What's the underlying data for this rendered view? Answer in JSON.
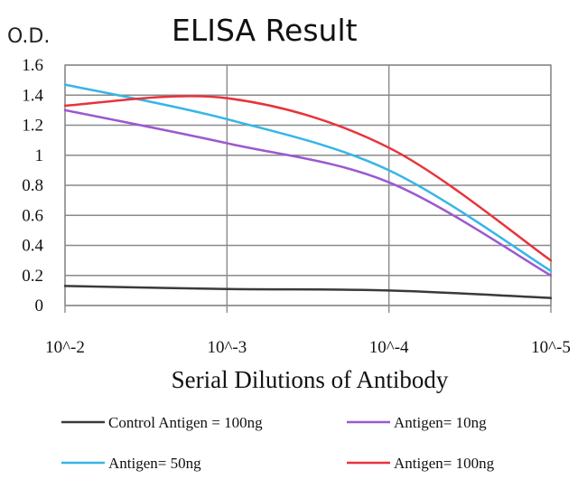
{
  "chart_data": {
    "type": "line",
    "title": "ELISA Result",
    "ylabel": "O.D.",
    "xlabel": "Serial Dilutions of Antibody",
    "categories": [
      "10^-2",
      "10^-3",
      "10^-4",
      "10^-5"
    ],
    "ylim": [
      0,
      1.6
    ],
    "yticks": [
      "0",
      "0.2",
      "0.4",
      "0.6",
      "0.8",
      "1",
      "1.2",
      "1.4",
      "1.6"
    ],
    "grid": true,
    "legend_position": "bottom",
    "series": [
      {
        "name": "Control Antigen = 100ng",
        "color": "#3a3a3a",
        "values": [
          0.13,
          0.11,
          0.1,
          0.05
        ]
      },
      {
        "name": "Antigen= 10ng",
        "color": "#9b59d0",
        "values": [
          1.3,
          1.08,
          0.82,
          0.2
        ]
      },
      {
        "name": "Antigen= 50ng",
        "color": "#36b6e8",
        "values": [
          1.47,
          1.24,
          0.9,
          0.23
        ]
      },
      {
        "name": "Antigen= 100ng",
        "color": "#e8333a",
        "values": [
          1.33,
          1.38,
          1.05,
          0.3
        ]
      }
    ]
  }
}
